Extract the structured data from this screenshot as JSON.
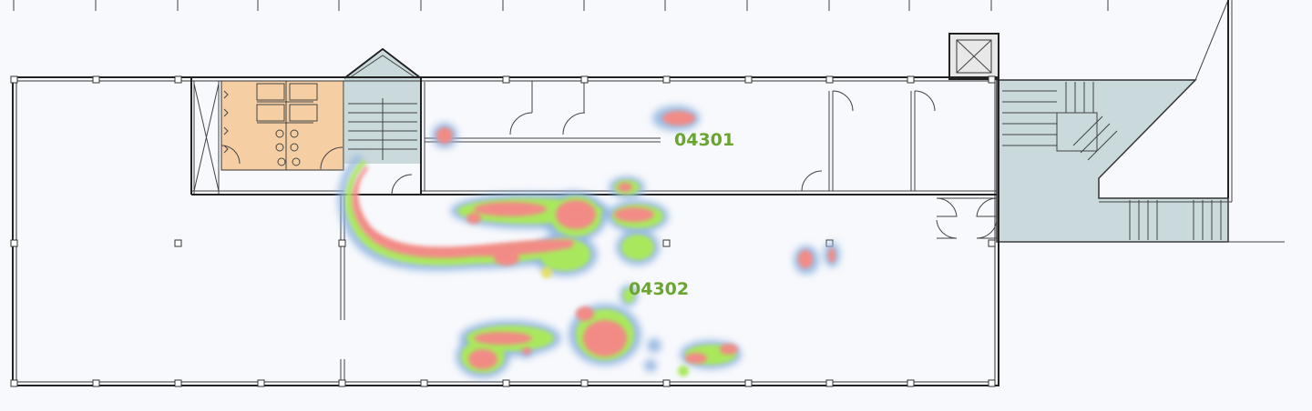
{
  "colors": {
    "background": "#f7f9fc",
    "wall": "#222222",
    "stair_fill": "#c9d9dc",
    "restroom_fill": "#f5cfa3",
    "label": "#6aa532",
    "heat_low": "#8fb4e0",
    "heat_mid": "#a9e85c",
    "heat_high": "#f28b86"
  },
  "rooms": [
    {
      "id": "04301",
      "label": "04301"
    },
    {
      "id": "04302",
      "label": "04302"
    }
  ],
  "heatmap": {
    "icon": "heatmap-overlay",
    "levels": [
      "low",
      "mid",
      "high"
    ]
  }
}
